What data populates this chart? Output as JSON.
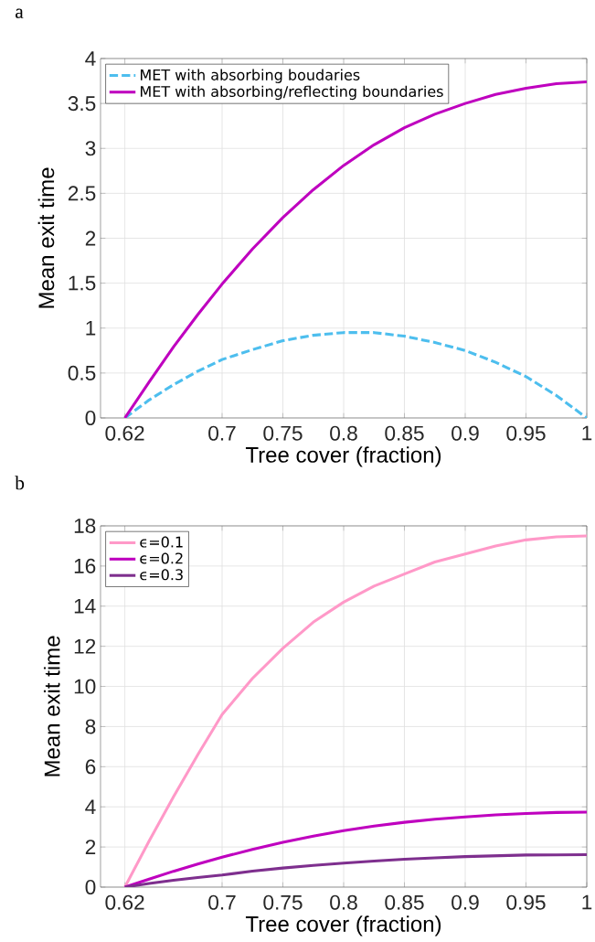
{
  "chart_data": [
    {
      "type": "line",
      "title": "a",
      "xlabel": "Tree cover (fraction)",
      "ylabel": "Mean exit time",
      "x": [
        0.62,
        0.64,
        0.66,
        0.68,
        0.7,
        0.725,
        0.75,
        0.775,
        0.8,
        0.825,
        0.85,
        0.875,
        0.9,
        0.925,
        0.95,
        0.975,
        1
      ],
      "xlim": [
        0.6,
        1
      ],
      "xticks": [
        0.62,
        0.7,
        0.75,
        0.8,
        0.85,
        0.9,
        0.95,
        1
      ],
      "ylim": [
        0,
        4
      ],
      "yticks": [
        0,
        0.5,
        1,
        1.5,
        2,
        2.5,
        3,
        3.5,
        4
      ],
      "grid": true,
      "legend": "top left",
      "series": [
        {
          "name": "MET with absorbing boudaries",
          "color": "#4dbeee",
          "line_style": "dashed",
          "values": [
            0,
            0.2,
            0.37,
            0.52,
            0.65,
            0.76,
            0.86,
            0.92,
            0.95,
            0.95,
            0.91,
            0.84,
            0.75,
            0.62,
            0.46,
            0.25,
            0
          ]
        },
        {
          "name": "MET with absorbing/reflecting boundaries",
          "color": "#bf00bf",
          "line_style": "solid",
          "values": [
            0,
            0.4,
            0.79,
            1.15,
            1.49,
            1.88,
            2.23,
            2.54,
            2.81,
            3.04,
            3.23,
            3.38,
            3.5,
            3.6,
            3.67,
            3.72,
            3.74
          ]
        }
      ]
    },
    {
      "type": "line",
      "title": "b",
      "xlabel": "Tree cover (fraction)",
      "ylabel": "Mean exit time",
      "x": [
        0.62,
        0.64,
        0.66,
        0.68,
        0.7,
        0.725,
        0.75,
        0.775,
        0.8,
        0.825,
        0.85,
        0.875,
        0.9,
        0.925,
        0.95,
        0.975,
        1
      ],
      "xlim": [
        0.6,
        1
      ],
      "xticks": [
        0.62,
        0.7,
        0.75,
        0.8,
        0.85,
        0.9,
        0.95,
        1
      ],
      "ylim": [
        0,
        18
      ],
      "yticks": [
        0,
        2,
        4,
        6,
        8,
        10,
        12,
        14,
        16,
        18
      ],
      "grid": true,
      "legend": "top left",
      "series": [
        {
          "name": "ϵ=0.1",
          "color": "#ff99c8",
          "line_style": "solid",
          "values": [
            0,
            2.3,
            4.5,
            6.6,
            8.6,
            10.4,
            11.9,
            13.2,
            14.2,
            15.0,
            15.6,
            16.2,
            16.6,
            17.0,
            17.3,
            17.45,
            17.5
          ]
        },
        {
          "name": "ϵ=0.2",
          "color": "#bf00bf",
          "line_style": "solid",
          "values": [
            0,
            0.4,
            0.79,
            1.15,
            1.49,
            1.88,
            2.23,
            2.54,
            2.81,
            3.04,
            3.23,
            3.38,
            3.5,
            3.6,
            3.67,
            3.72,
            3.74
          ]
        },
        {
          "name": "ϵ=0.3",
          "color": "#7e2f8e",
          "line_style": "solid",
          "values": [
            0,
            0.18,
            0.34,
            0.48,
            0.6,
            0.8,
            0.95,
            1.08,
            1.2,
            1.3,
            1.39,
            1.46,
            1.52,
            1.56,
            1.6,
            1.61,
            1.62
          ]
        }
      ]
    }
  ]
}
